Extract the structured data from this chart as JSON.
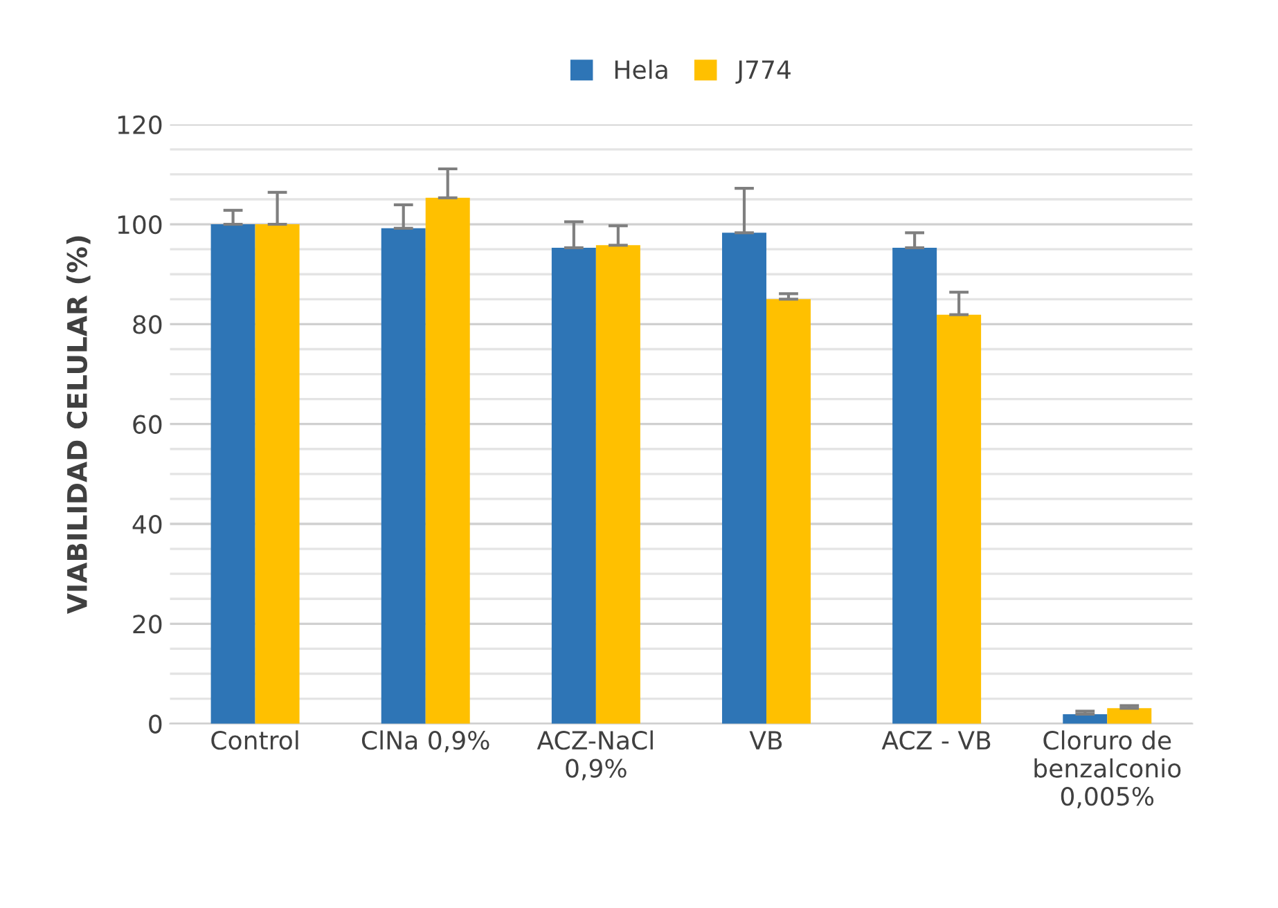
{
  "chart_data": {
    "type": "bar",
    "ylabel": "VIABILIDAD CELULAR (%)",
    "categories": [
      "Control",
      "ClNa 0,9%",
      "ACZ-NaCl\n0,9%",
      "VB",
      "ACZ - VB",
      "Cloruro de\nbenzalconio\n0,005%"
    ],
    "series": [
      {
        "name": "Hela",
        "color": "#2e75b6",
        "values": [
          100,
          99.2,
          95.3,
          98.3,
          95.3,
          1.9
        ],
        "errors": [
          [
            100,
            102.8
          ],
          [
            99.2,
            103.9
          ],
          [
            95.3,
            100.5
          ],
          [
            98.3,
            107.2
          ],
          [
            95.3,
            98.3
          ],
          [
            1.9,
            2.5
          ]
        ]
      },
      {
        "name": "J774",
        "color": "#ffc000",
        "values": [
          100,
          105.3,
          95.8,
          85,
          81.9,
          3.1
        ],
        "errors": [
          [
            100,
            106.4
          ],
          [
            105.3,
            111.1
          ],
          [
            95.8,
            99.7
          ],
          [
            85,
            86.1
          ],
          [
            81.9,
            86.4
          ],
          [
            3.1,
            3.6
          ]
        ]
      }
    ],
    "ylim": [
      0,
      120
    ],
    "yticks": [
      0,
      {
        "value": 5,
        "label": null
      },
      {
        "value": 10,
        "label": null
      },
      {
        "value": 15,
        "label": null
      },
      20,
      {
        "value": 25,
        "label": null
      },
      {
        "value": 30,
        "label": null
      },
      {
        "value": 35,
        "label": null
      },
      40,
      {
        "value": 45,
        "label": null
      },
      {
        "value": 50,
        "label": null
      },
      {
        "value": 55,
        "label": null
      },
      60,
      {
        "value": 65,
        "label": null
      },
      {
        "value": 70,
        "label": null
      },
      {
        "value": 75,
        "label": null
      },
      80,
      {
        "value": 85,
        "label": null
      },
      {
        "value": 90,
        "label": null
      },
      {
        "value": 95,
        "label": null
      },
      100,
      {
        "value": 105,
        "label": null
      },
      {
        "value": 110,
        "label": null
      },
      {
        "value": 115,
        "label": null
      },
      120
    ],
    "grid": "y",
    "legend": "top"
  }
}
